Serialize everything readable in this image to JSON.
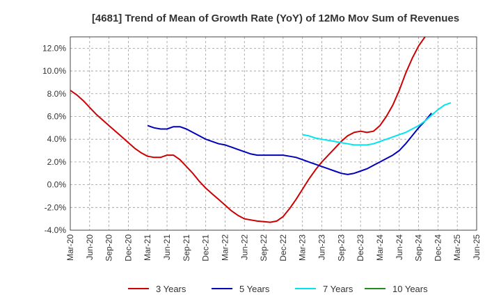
{
  "chart_data": {
    "type": "line",
    "title": "[4681]  Trend of Mean of Growth Rate (YoY) of 12Mo Mov Sum of Revenues",
    "xlabel": "",
    "ylabel": "",
    "ylim": [
      -4.0,
      13.0
    ],
    "y_ticks": [
      -4.0,
      -2.0,
      0.0,
      2.0,
      4.0,
      6.0,
      8.0,
      10.0,
      12.0
    ],
    "y_tick_labels": [
      "-4.0%",
      "-2.0%",
      "0.0%",
      "2.0%",
      "4.0%",
      "6.0%",
      "8.0%",
      "10.0%",
      "12.0%"
    ],
    "x_tick_labels": [
      "Mar-20",
      "Jun-20",
      "Sep-20",
      "Dec-20",
      "Mar-21",
      "Jun-21",
      "Sep-21",
      "Dec-21",
      "Mar-22",
      "Jun-22",
      "Sep-22",
      "Dec-22",
      "Mar-23",
      "Jun-23",
      "Sep-23",
      "Dec-23",
      "Mar-24",
      "Jun-24",
      "Sep-24",
      "Dec-24",
      "Mar-25",
      "Jun-25"
    ],
    "grid": true,
    "legend_position": "bottom",
    "series": [
      {
        "name": "3 Years",
        "color": "#cc0000",
        "start_index": 0,
        "values": [
          8.3,
          7.9,
          7.4,
          6.8,
          6.2,
          5.7,
          5.2,
          4.7,
          4.2,
          3.7,
          3.2,
          2.8,
          2.5,
          2.4,
          2.4,
          2.6,
          2.6,
          2.2,
          1.6,
          1.0,
          0.3,
          -0.3,
          -0.8,
          -1.3,
          -1.8,
          -2.3,
          -2.7,
          -3.0,
          -3.1,
          -3.2,
          -3.25,
          -3.3,
          -3.2,
          -2.8,
          -2.1,
          -1.3,
          -0.4,
          0.5,
          1.3,
          2.0,
          2.6,
          3.2,
          3.8,
          4.3,
          4.6,
          4.7,
          4.6,
          4.7,
          5.2,
          6.0,
          7.0,
          8.3,
          9.8,
          11.1,
          12.2,
          13.0
        ]
      },
      {
        "name": "5 Years",
        "color": "#0000bb",
        "start_index": 12,
        "values": [
          5.2,
          5.0,
          4.9,
          4.9,
          5.1,
          5.1,
          4.9,
          4.6,
          4.3,
          4.0,
          3.8,
          3.6,
          3.5,
          3.3,
          3.1,
          2.9,
          2.7,
          2.6,
          2.6,
          2.6,
          2.6,
          2.6,
          2.5,
          2.4,
          2.2,
          2.0,
          1.8,
          1.6,
          1.4,
          1.2,
          1.0,
          0.9,
          1.0,
          1.2,
          1.4,
          1.7,
          2.0,
          2.3,
          2.6,
          3.0,
          3.6,
          4.3,
          5.0,
          5.6,
          6.3
        ]
      },
      {
        "name": "7 Years",
        "color": "#00e5ee",
        "start_index": 36,
        "values": [
          4.4,
          4.3,
          4.1,
          4.0,
          3.9,
          3.8,
          3.7,
          3.6,
          3.5,
          3.5,
          3.5,
          3.6,
          3.8,
          4.0,
          4.2,
          4.4,
          4.6,
          4.9,
          5.2,
          5.6,
          6.1,
          6.6,
          7.0,
          7.2
        ]
      },
      {
        "name": "10 Years",
        "color": "#228b22",
        "start_index": 0,
        "values": []
      }
    ]
  }
}
